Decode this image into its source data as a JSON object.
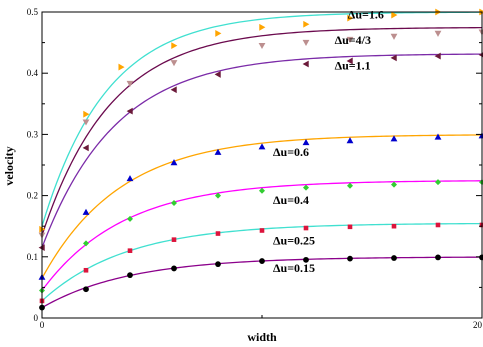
{
  "chart_data": {
    "type": "scatter",
    "title": "",
    "xlabel": "width",
    "ylabel": "velocity",
    "xlim": [
      0,
      20
    ],
    "ylim": [
      0,
      0.5
    ],
    "x_ticks": [
      0,
      20
    ],
    "y_ticks": [
      0,
      0.1,
      0.2,
      0.3,
      0.4,
      0.5
    ],
    "x_tick_labels": [
      "0",
      "20"
    ],
    "y_tick_labels": [
      "0",
      "0.1",
      "0.2",
      "0.3",
      "0.4",
      "0.5"
    ],
    "grid": false,
    "legend": "none",
    "series": [
      {
        "label": "Δu=1.6",
        "color": "#40e0d0",
        "marker": "triangle-right",
        "marker_color": "#ffa500",
        "x": [
          0,
          2,
          3.6,
          6,
          8,
          10,
          12,
          14,
          16,
          18,
          20
        ],
        "y": [
          0.145,
          0.333,
          0.41,
          0.445,
          0.465,
          0.475,
          0.48,
          0.49,
          0.495,
          0.5,
          0.5
        ],
        "curve_asymptote": 0.5,
        "curve_start": 0.15,
        "curve_rate": 0.34
      },
      {
        "label": "Δu=4/3",
        "color": "#6b0a4e",
        "marker": "triangle-down",
        "marker_color": "#bc8f8f",
        "x": [
          0,
          2,
          4,
          6,
          10,
          12,
          14,
          16,
          18,
          20
        ],
        "y": [
          0.135,
          0.32,
          0.383,
          0.417,
          0.445,
          0.45,
          0.455,
          0.46,
          0.465,
          0.467
        ],
        "curve_asymptote": 0.475,
        "curve_start": 0.135,
        "curve_rate": 0.32
      },
      {
        "label": "Δu=1.1",
        "color": "#7b2ba8",
        "marker": "triangle-left",
        "marker_color": "#6b1a3a",
        "x": [
          0,
          2,
          4,
          6,
          8,
          12,
          14,
          16,
          18,
          20
        ],
        "y": [
          0.115,
          0.278,
          0.338,
          0.373,
          0.398,
          0.415,
          0.42,
          0.425,
          0.428,
          0.43
        ],
        "curve_asymptote": 0.432,
        "curve_start": 0.115,
        "curve_rate": 0.3
      },
      {
        "label": "Δu=0.6",
        "color": "#ffa500",
        "marker": "triangle-up",
        "marker_color": "#0000cd",
        "x": [
          0,
          2,
          4,
          6,
          8,
          10,
          12,
          14,
          16,
          18,
          20
        ],
        "y": [
          0.067,
          0.173,
          0.228,
          0.254,
          0.271,
          0.28,
          0.287,
          0.29,
          0.293,
          0.296,
          0.298
        ],
        "curve_asymptote": 0.3,
        "curve_start": 0.065,
        "curve_rate": 0.28
      },
      {
        "label": "Δu=0.4",
        "color": "#ff00ff",
        "marker": "diamond",
        "marker_color": "#32cd32",
        "x": [
          0,
          2,
          4,
          6,
          8,
          10,
          12,
          14,
          16,
          18,
          20
        ],
        "y": [
          0.045,
          0.122,
          0.162,
          0.188,
          0.2,
          0.208,
          0.213,
          0.216,
          0.218,
          0.222,
          0.222
        ],
        "curve_asymptote": 0.225,
        "curve_start": 0.045,
        "curve_rate": 0.27
      },
      {
        "label": "Δu=0.25",
        "color": "#40e0d0",
        "marker": "square",
        "marker_color": "#dc143c",
        "x": [
          0,
          2,
          4,
          6,
          8,
          10,
          12,
          14,
          16,
          18,
          20
        ],
        "y": [
          0.028,
          0.078,
          0.11,
          0.128,
          0.138,
          0.143,
          0.147,
          0.149,
          0.15,
          0.152,
          0.152
        ],
        "curve_asymptote": 0.155,
        "curve_start": 0.028,
        "curve_rate": 0.26
      },
      {
        "label": "Δu=0.15",
        "color": "#8b008b",
        "marker": "circle",
        "marker_color": "#000000",
        "x": [
          0,
          2,
          4,
          6,
          8,
          10,
          12,
          14,
          16,
          18,
          20
        ],
        "y": [
          0.017,
          0.047,
          0.07,
          0.081,
          0.088,
          0.093,
          0.095,
          0.097,
          0.098,
          0.099,
          0.099
        ],
        "curve_asymptote": 0.1,
        "curve_start": 0.017,
        "curve_rate": 0.25
      }
    ],
    "annotations": [
      {
        "text": "Δu=1.6",
        "x": 13.9,
        "y": 0.489
      },
      {
        "text": "Δu=4/3",
        "x": 13.3,
        "y": 0.448
      },
      {
        "text": "Δu=1.1",
        "x": 13.3,
        "y": 0.406
      },
      {
        "text": "Δu=0.6",
        "x": 10.5,
        "y": 0.265
      },
      {
        "text": "Δu=0.4",
        "x": 10.5,
        "y": 0.186
      },
      {
        "text": "Δu=0.25",
        "x": 10.5,
        "y": 0.12
      },
      {
        "text": "Δu=0.15",
        "x": 10.5,
        "y": 0.075
      }
    ]
  }
}
